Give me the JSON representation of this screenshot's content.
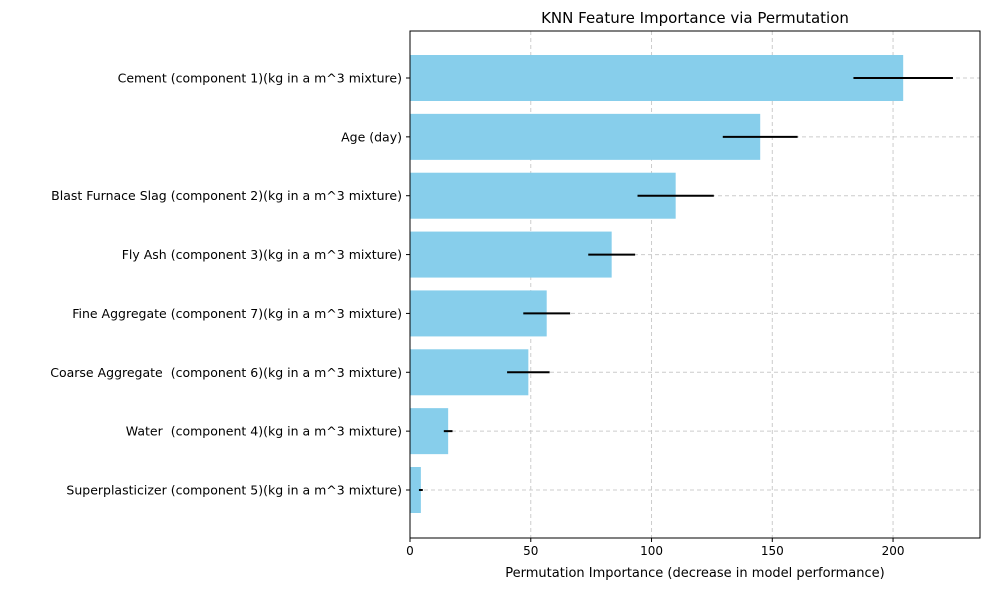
{
  "chart_data": {
    "type": "bar",
    "orientation": "horizontal",
    "title": "KNN Feature Importance via Permutation",
    "xlabel": "Permutation Importance (decrease in model performance)",
    "ylabel": "",
    "xlim": [
      0,
      236
    ],
    "xticks": [
      0,
      50,
      100,
      150,
      200
    ],
    "grid": true,
    "bar_color": "#87CEEB",
    "error_color": "#000000",
    "categories": [
      "Cement (component 1)(kg in a m^3 mixture)",
      "Age (day)",
      "Blast Furnace Slag (component 2)(kg in a m^3 mixture)",
      "Fly Ash (component 3)(kg in a m^3 mixture)",
      "Fine Aggregate (component 7)(kg in a m^3 mixture)",
      "Coarse Aggregate  (component 6)(kg in a m^3 mixture)",
      "Water  (component 4)(kg in a m^3 mixture)",
      "Superplasticizer (component 5)(kg in a m^3 mixture)"
    ],
    "values": [
      204.2,
      145.0,
      110.0,
      83.5,
      56.6,
      49.0,
      15.8,
      4.5
    ],
    "errors": [
      20.6,
      15.5,
      15.8,
      9.7,
      9.7,
      8.8,
      1.8,
      0.8
    ]
  }
}
